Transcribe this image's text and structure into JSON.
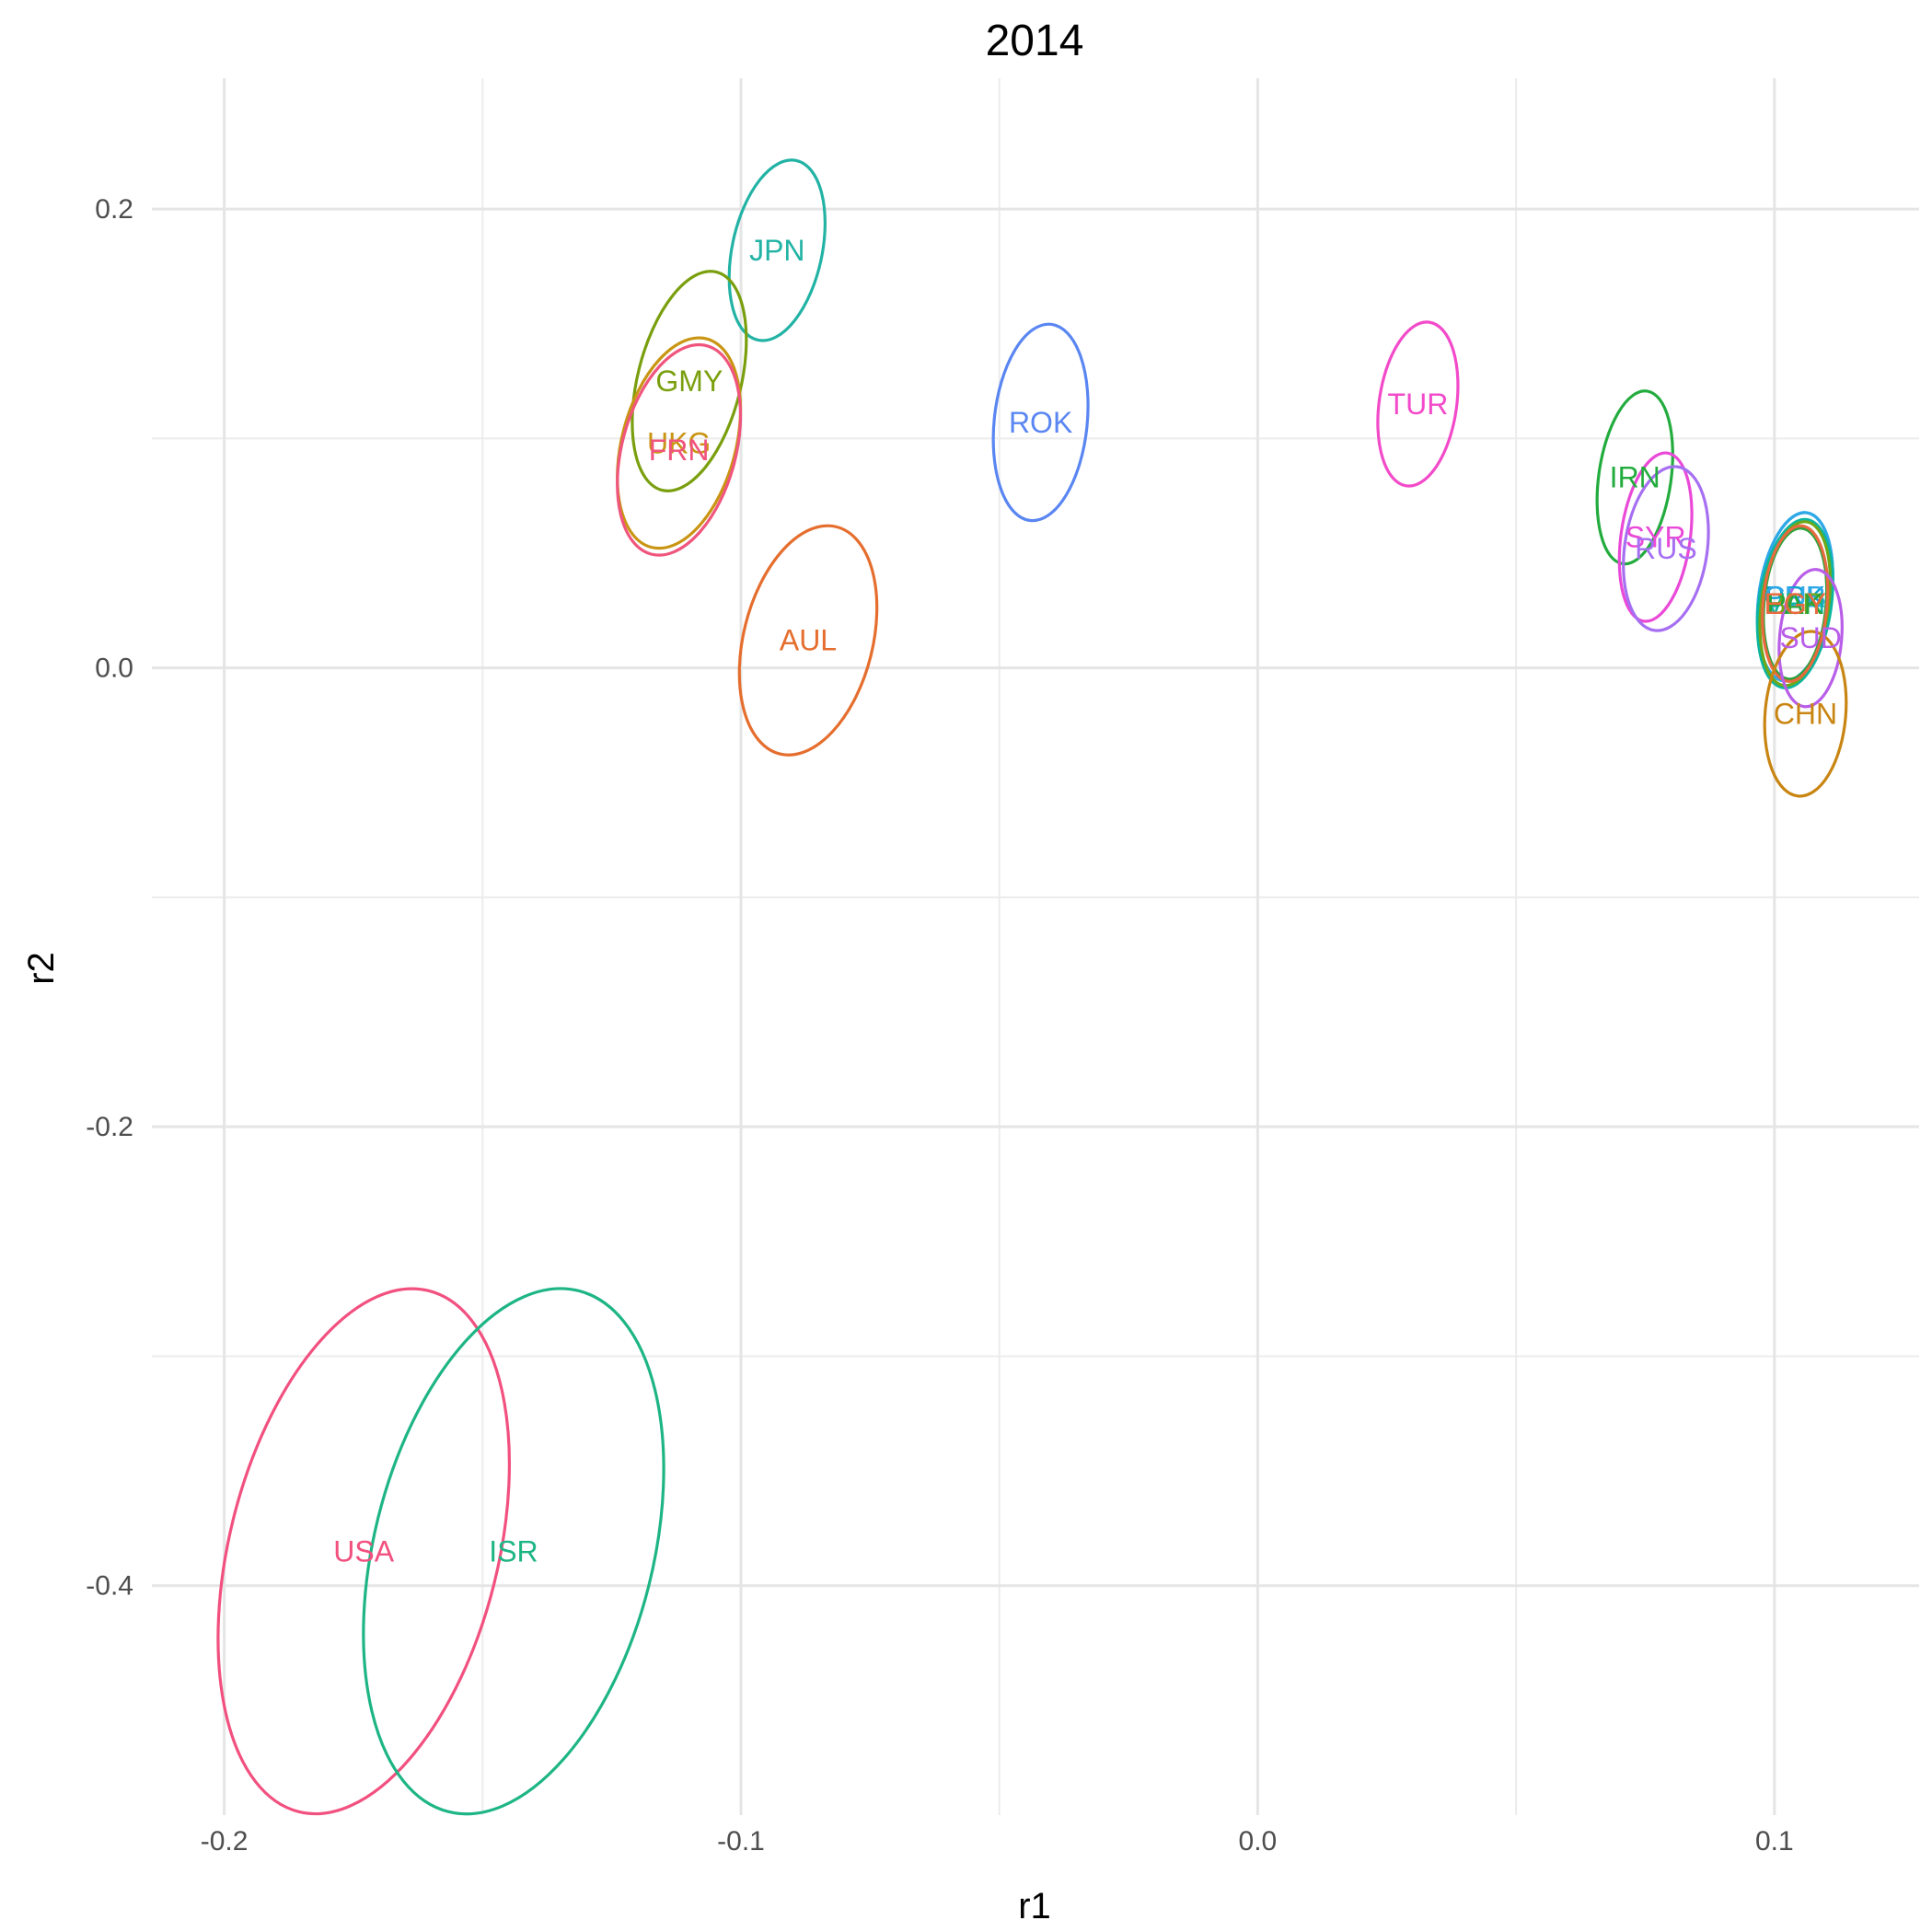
{
  "chart_data": {
    "type": "scatter",
    "title": "2014",
    "xlabel": "r1",
    "ylabel": "r2",
    "xlim": [
      -0.214,
      0.128
    ],
    "ylim": [
      -0.5,
      0.257
    ],
    "x_ticks": [
      -0.2,
      -0.1,
      0.0,
      0.1
    ],
    "x_tick_labels": [
      "-0.2",
      "-0.1",
      "0.0",
      "0.1"
    ],
    "y_ticks": [
      0.2,
      0.0,
      -0.2,
      -0.4
    ],
    "y_tick_labels": [
      "0.2",
      "0.0",
      "-0.2",
      "-0.4"
    ],
    "grid": true,
    "legend": "none",
    "note": "Each point shows a country position with a confidence ellipse (rx, ry in data units, tilt in degrees).",
    "points": [
      {
        "label": "JPN",
        "x": -0.093,
        "y": 0.182,
        "rx": 0.0087,
        "ry": 0.04,
        "tilt": 12,
        "color": "#22b3a5"
      },
      {
        "label": "GMY",
        "x": -0.11,
        "y": 0.125,
        "rx": 0.01,
        "ry": 0.049,
        "tilt": 14,
        "color": "#7a9f0e"
      },
      {
        "label": "UKG",
        "x": -0.112,
        "y": 0.098,
        "rx": 0.011,
        "ry": 0.047,
        "tilt": 15,
        "color": "#c99513"
      },
      {
        "label": "FRN",
        "x": -0.112,
        "y": 0.095,
        "rx": 0.011,
        "ry": 0.047,
        "tilt": 15,
        "color": "#f0557d"
      },
      {
        "label": "ROK",
        "x": -0.042,
        "y": 0.107,
        "rx": 0.009,
        "ry": 0.043,
        "tilt": 6,
        "color": "#5a86f2"
      },
      {
        "label": "AUL",
        "x": -0.087,
        "y": 0.012,
        "rx": 0.0125,
        "ry": 0.051,
        "tilt": 14,
        "color": "#e56e2e"
      },
      {
        "label": "TUR",
        "x": 0.031,
        "y": 0.115,
        "rx": 0.0075,
        "ry": 0.036,
        "tilt": 8,
        "color": "#f24ac9"
      },
      {
        "label": "IRN",
        "x": 0.073,
        "y": 0.083,
        "rx": 0.007,
        "ry": 0.038,
        "tilt": 8,
        "color": "#23ac3e"
      },
      {
        "label": "SYR",
        "x": 0.077,
        "y": 0.057,
        "rx": 0.0067,
        "ry": 0.037,
        "tilt": 8,
        "color": "#ea49d8"
      },
      {
        "label": "RUS",
        "x": 0.079,
        "y": 0.052,
        "rx": 0.008,
        "ry": 0.036,
        "tilt": 8,
        "color": "#a66ff2"
      },
      {
        "label": "PRK",
        "x": 0.104,
        "y": 0.031,
        "rx": 0.007,
        "ry": 0.037,
        "tilt": 8,
        "color": "#10a0d6"
      },
      {
        "label": "CUB",
        "x": 0.104,
        "y": 0.031,
        "rx": 0.007,
        "ry": 0.037,
        "tilt": 8,
        "color": "#2fa8e8"
      },
      {
        "label": "VEN",
        "x": 0.104,
        "y": 0.028,
        "rx": 0.007,
        "ry": 0.037,
        "tilt": 8,
        "color": "#0cb5a0"
      },
      {
        "label": "BLR",
        "x": 0.104,
        "y": 0.028,
        "rx": 0.0065,
        "ry": 0.036,
        "tilt": 8,
        "color": "#6fa817"
      },
      {
        "label": "PAK",
        "x": 0.104,
        "y": 0.028,
        "rx": 0.006,
        "ry": 0.033,
        "tilt": 5,
        "color": "#2aa33c"
      },
      {
        "label": "EGY",
        "x": 0.104,
        "y": 0.028,
        "rx": 0.0062,
        "ry": 0.034,
        "tilt": 5,
        "color": "#e86a3f"
      },
      {
        "label": "SUD",
        "x": 0.107,
        "y": 0.013,
        "rx": 0.006,
        "ry": 0.03,
        "tilt": 5,
        "color": "#b85ee8"
      },
      {
        "label": "CHN",
        "x": 0.106,
        "y": -0.02,
        "rx": 0.0078,
        "ry": 0.036,
        "tilt": 5,
        "color": "#c98512"
      },
      {
        "label": "USA",
        "x": -0.173,
        "y": -0.385,
        "rx": 0.026,
        "ry": 0.117,
        "tilt": 14,
        "color": "#f2507f"
      },
      {
        "label": "ISR",
        "x": -0.144,
        "y": -0.385,
        "rx": 0.027,
        "ry": 0.117,
        "tilt": 14,
        "color": "#1eb585"
      }
    ]
  }
}
